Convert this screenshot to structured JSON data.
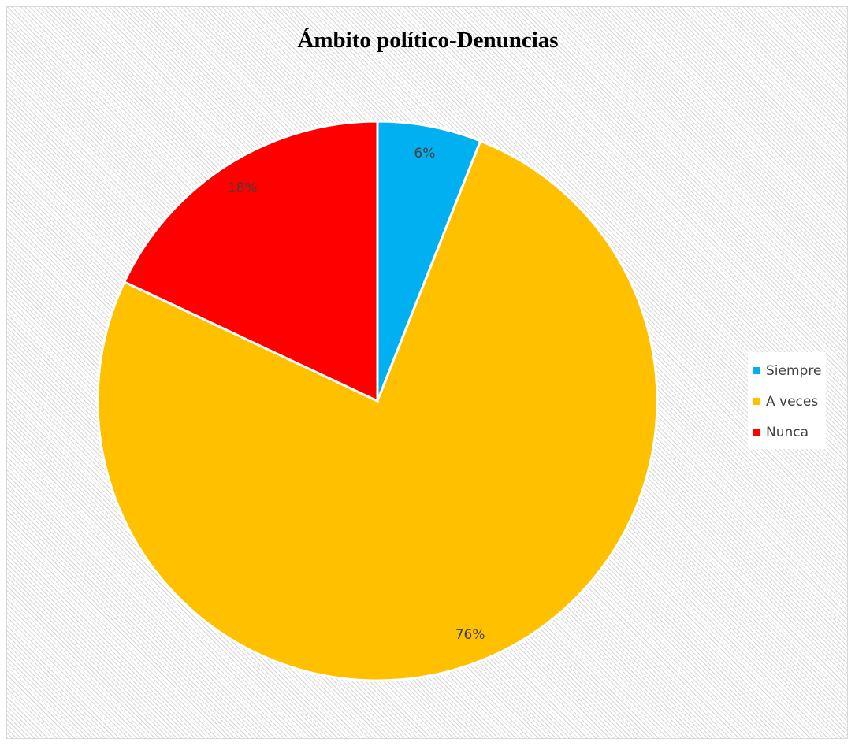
{
  "chart_data": {
    "type": "pie",
    "title": "Ámbito político-Denuncias",
    "categories": [
      "Siempre",
      "A veces",
      "Nunca"
    ],
    "values": [
      6,
      76,
      18
    ],
    "data_labels": [
      "6%",
      "76%",
      "18%"
    ],
    "colors": [
      "#00b0f0",
      "#ffc000",
      "#ff0000"
    ],
    "legend_position": "right",
    "start_angle_deg": 0,
    "direction": "clockwise"
  }
}
